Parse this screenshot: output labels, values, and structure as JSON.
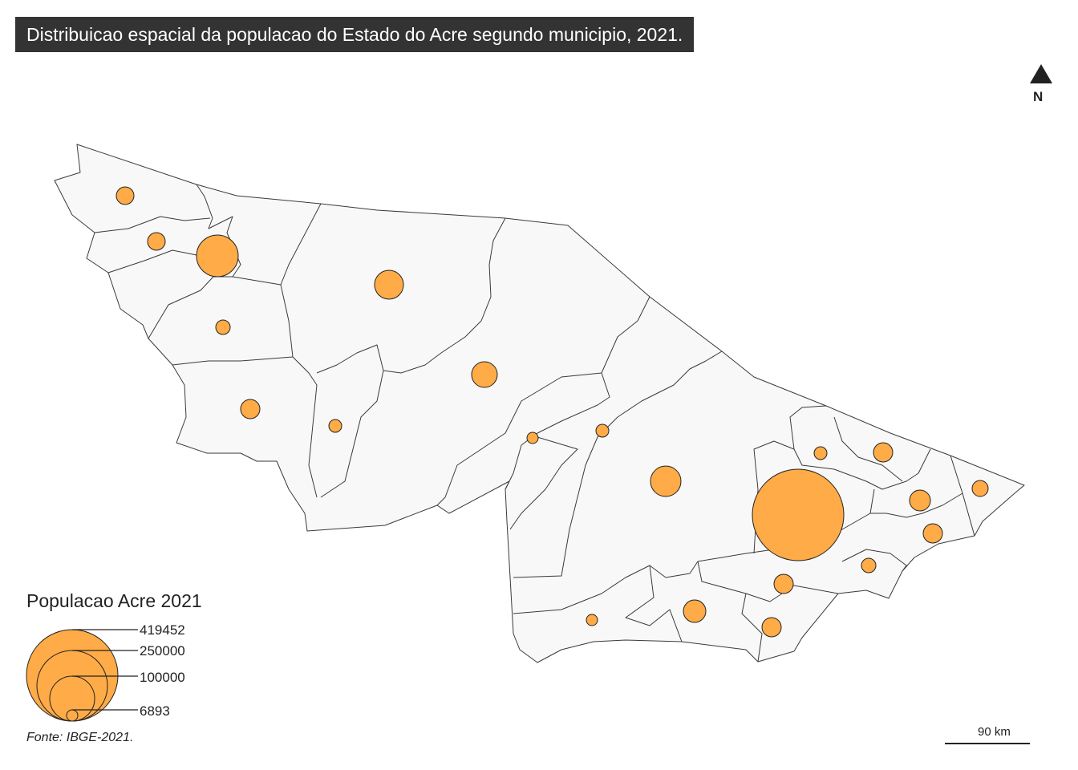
{
  "title": "Distribuicao espacial da populacao do Estado do Acre segundo municipio, 2021.",
  "legend": {
    "title": "Populacao Acre 2021",
    "entries": [
      {
        "label": "419452",
        "value": 419452
      },
      {
        "label": "250000",
        "value": 250000
      },
      {
        "label": "100000",
        "value": 100000
      },
      {
        "label": "6893",
        "value": 6893
      }
    ]
  },
  "source": "Fonte: IBGE-2021.",
  "scale_bar": {
    "label": "90 km"
  },
  "north_arrow": {
    "label": "N"
  },
  "colors": {
    "bubble": "#ffab47",
    "land": "#f8f8f8",
    "border": "#3a3a3a",
    "title_bg": "#333333"
  }
}
